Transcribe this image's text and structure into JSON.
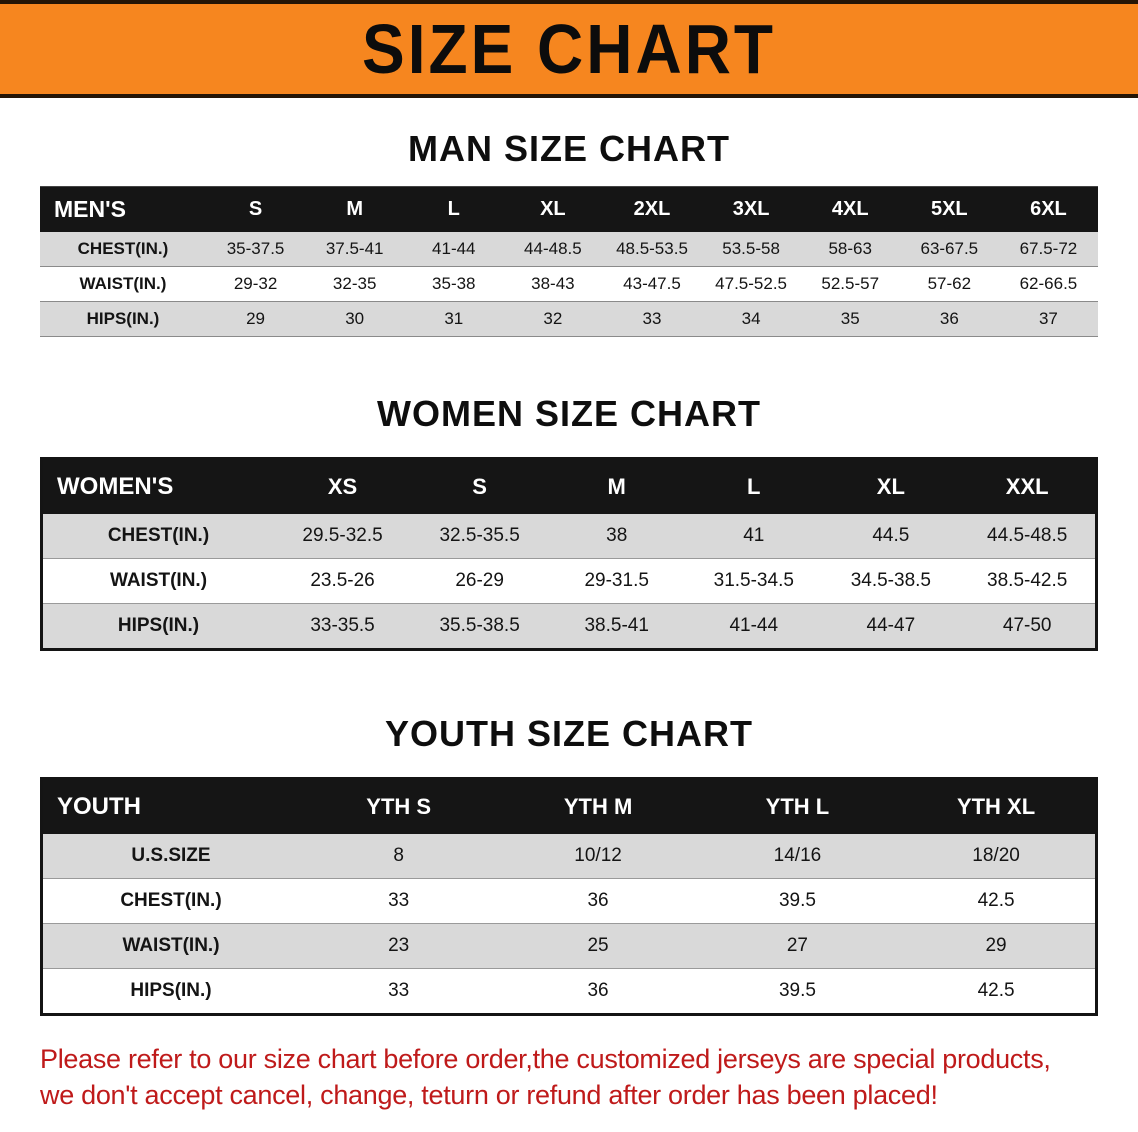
{
  "banner": {
    "title": "SIZE CHART"
  },
  "colors": {
    "banner_orange": "#f6861f",
    "header_black": "#151515",
    "row_gray": "#d9d9d9",
    "disclaimer_red": "#bf1a1a"
  },
  "chart_data": [
    {
      "type": "table",
      "title": "MAN SIZE CHART",
      "columns": [
        "MEN'S",
        "S",
        "M",
        "L",
        "XL",
        "2XL",
        "3XL",
        "4XL",
        "5XL",
        "6XL"
      ],
      "rows": [
        [
          "CHEST(IN.)",
          "35-37.5",
          "37.5-41",
          "41-44",
          "44-48.5",
          "48.5-53.5",
          "53.5-58",
          "58-63",
          "63-67.5",
          "67.5-72"
        ],
        [
          "WAIST(IN.)",
          "29-32",
          "32-35",
          "35-38",
          "38-43",
          "43-47.5",
          "47.5-52.5",
          "52.5-57",
          "57-62",
          "62-66.5"
        ],
        [
          "HIPS(IN.)",
          "29",
          "30",
          "31",
          "32",
          "33",
          "34",
          "35",
          "36",
          "37"
        ]
      ]
    },
    {
      "type": "table",
      "title": "WOMEN SIZE CHART",
      "columns": [
        "WOMEN'S",
        "XS",
        "S",
        "M",
        "L",
        "XL",
        "XXL"
      ],
      "rows": [
        [
          "CHEST(IN.)",
          "29.5-32.5",
          "32.5-35.5",
          "38",
          "41",
          "44.5",
          "44.5-48.5"
        ],
        [
          "WAIST(IN.)",
          "23.5-26",
          "26-29",
          "29-31.5",
          "31.5-34.5",
          "34.5-38.5",
          "38.5-42.5"
        ],
        [
          "HIPS(IN.)",
          "33-35.5",
          "35.5-38.5",
          "38.5-41",
          "41-44",
          "44-47",
          "47-50"
        ]
      ]
    },
    {
      "type": "table",
      "title": "YOUTH SIZE CHART",
      "columns": [
        "YOUTH",
        "YTH S",
        "YTH M",
        "YTH L",
        "YTH XL"
      ],
      "rows": [
        [
          "U.S.SIZE",
          "8",
          "10/12",
          "14/16",
          "18/20"
        ],
        [
          "CHEST(IN.)",
          "33",
          "36",
          "39.5",
          "42.5"
        ],
        [
          "WAIST(IN.)",
          "23",
          "25",
          "27",
          "29"
        ],
        [
          "HIPS(IN.)",
          "33",
          "36",
          "39.5",
          "42.5"
        ]
      ]
    }
  ],
  "footer": {
    "line1": "Please refer to our size chart before order,the customized jerseys are special products,",
    "line2": "we don't accept cancel, change, teturn or refund after order has been placed!"
  }
}
